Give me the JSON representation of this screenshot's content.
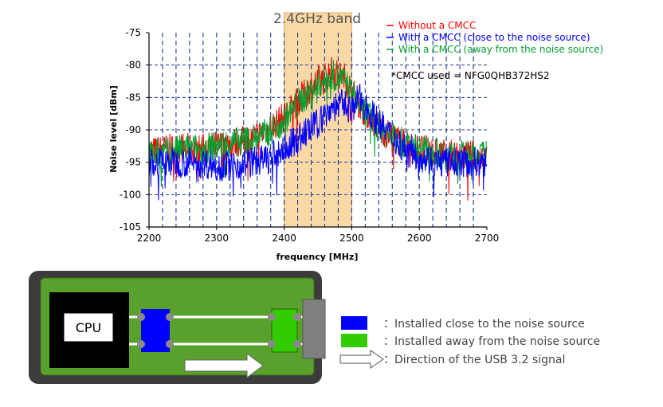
{
  "chart_data": {
    "type": "line",
    "band_label": "2.4GHz band",
    "band_range": [
      2400,
      2500
    ],
    "xlabel": "frequency [MHz]",
    "ylabel": "Noise level [dBm]",
    "xlim": [
      2200,
      2700
    ],
    "ylim": [
      -105,
      -75
    ],
    "x_ticks": [
      "2200",
      "2300",
      "2400",
      "2500",
      "2600",
      "2700"
    ],
    "y_ticks": [
      "-75",
      "-80",
      "-85",
      "-90",
      "-95",
      "-100",
      "-105"
    ],
    "grid": true,
    "legend_position": "top-right",
    "note": "*CMCC used = NFG0QHB372HS2",
    "series": [
      {
        "name": "Without a CMCC",
        "color": "#ff0000",
        "x": [
          2200,
          2225,
          2250,
          2275,
          2300,
          2325,
          2350,
          2375,
          2400,
          2425,
          2450,
          2470,
          2490,
          2500,
          2525,
          2550,
          2575,
          2600,
          2625,
          2650,
          2675,
          2700
        ],
        "y": [
          -93.5,
          -93,
          -92.8,
          -93,
          -92.5,
          -92,
          -91.5,
          -90,
          -88,
          -85,
          -82.5,
          -81,
          -82,
          -84,
          -88,
          -90.5,
          -92,
          -93,
          -93.5,
          -94,
          -94,
          -94
        ]
      },
      {
        "name": "With a CMCC (close to the noise source)",
        "color": "#0000ff",
        "x": [
          2200,
          2225,
          2250,
          2275,
          2300,
          2325,
          2350,
          2375,
          2400,
          2425,
          2450,
          2470,
          2490,
          2500,
          2510,
          2525,
          2550,
          2575,
          2600,
          2625,
          2650,
          2675,
          2700
        ],
        "y": [
          -95,
          -95,
          -95,
          -95,
          -95.5,
          -95.5,
          -95,
          -94.5,
          -93,
          -91,
          -89,
          -86.5,
          -86,
          -87,
          -85,
          -87,
          -90,
          -92.5,
          -94,
          -95,
          -95,
          -95,
          -95
        ]
      },
      {
        "name": "With a CMCC (away from the noise source)",
        "color": "#00a030",
        "x": [
          2200,
          2225,
          2250,
          2275,
          2300,
          2325,
          2350,
          2375,
          2400,
          2425,
          2450,
          2470,
          2490,
          2500,
          2525,
          2550,
          2575,
          2600,
          2625,
          2650,
          2675,
          2700
        ],
        "y": [
          -94,
          -93.5,
          -93,
          -93,
          -92.5,
          -92,
          -91.5,
          -90.5,
          -88.5,
          -85.5,
          -83,
          -81.5,
          -82.5,
          -84.5,
          -88,
          -90.5,
          -92,
          -93,
          -93.5,
          -94,
          -94,
          -94
        ]
      }
    ]
  },
  "diagram": {
    "cpu_label": "CPU",
    "legend": [
      {
        "swatch": "blue",
        "color": "#0000ff",
        "text": "：Installed close to the noise source"
      },
      {
        "swatch": "green",
        "color": "#33cc00",
        "text": "：Installed away from the noise source"
      },
      {
        "swatch": "arrow",
        "color": "#ffffff",
        "text": "：Direction of the USB 3.2 signal"
      }
    ]
  }
}
